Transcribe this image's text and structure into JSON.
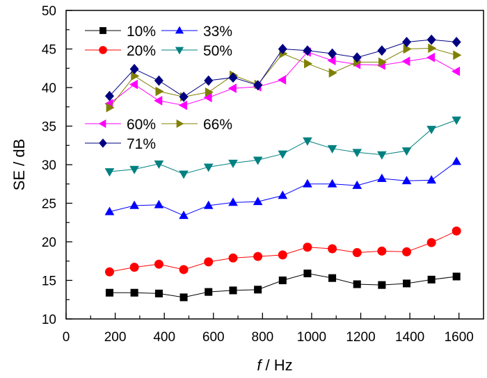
{
  "chart_data": {
    "type": "line",
    "title": "",
    "xlabel_italic": "f",
    "xlabel_rest": " / Hz",
    "xlabel": "f / Hz",
    "ylabel": "SE / dB",
    "xlim": [
      0,
      1700
    ],
    "ylim": [
      10,
      50
    ],
    "xticks": [
      0,
      200,
      400,
      600,
      800,
      1000,
      1200,
      1400,
      1600
    ],
    "xminor": [
      100,
      300,
      500,
      700,
      900,
      1100,
      1300,
      1500
    ],
    "yticks": [
      10,
      15,
      20,
      25,
      30,
      35,
      40,
      45,
      50
    ],
    "yminor": [
      12.5,
      17.5,
      22.5,
      27.5,
      32.5,
      37.5,
      42.5,
      47.5
    ],
    "grid": false,
    "legend_position": "top-left",
    "x": [
      177,
      278,
      378,
      479,
      580,
      680,
      781,
      882,
      983,
      1084,
      1185,
      1286,
      1387,
      1488,
      1590
    ],
    "series": [
      {
        "name": "10%",
        "color": "#000000",
        "marker": "square",
        "values": [
          13.4,
          13.4,
          13.3,
          12.8,
          13.5,
          13.7,
          13.8,
          15.0,
          15.9,
          15.3,
          14.5,
          14.4,
          14.6,
          15.1,
          15.5
        ]
      },
      {
        "name": "20%",
        "color": "#ff0000",
        "marker": "circle",
        "values": [
          16.1,
          16.7,
          17.1,
          16.4,
          17.4,
          17.9,
          18.1,
          18.3,
          19.3,
          19.1,
          18.6,
          18.8,
          18.7,
          19.9,
          21.4
        ]
      },
      {
        "name": "33%",
        "color": "#0000ff",
        "marker": "triangle-up",
        "values": [
          23.9,
          24.7,
          24.8,
          23.4,
          24.7,
          25.1,
          25.2,
          26.0,
          27.5,
          27.5,
          27.3,
          28.2,
          27.9,
          28.0,
          30.4
        ]
      },
      {
        "name": "50%",
        "color": "#008080",
        "marker": "triangle-down",
        "values": [
          29.1,
          29.4,
          30.1,
          28.8,
          29.7,
          30.2,
          30.6,
          31.4,
          33.1,
          32.1,
          31.6,
          31.3,
          31.8,
          34.6,
          35.8
        ]
      },
      {
        "name": "60%",
        "color": "#ff00ff",
        "marker": "triangle-left",
        "values": [
          37.9,
          40.4,
          38.3,
          37.7,
          38.7,
          39.9,
          40.1,
          41.0,
          44.6,
          43.5,
          43.0,
          42.9,
          43.4,
          43.9,
          42.1
        ]
      },
      {
        "name": "66%",
        "color": "#808000",
        "marker": "triangle-right",
        "values": [
          37.4,
          41.5,
          39.5,
          38.8,
          39.4,
          41.6,
          40.4,
          44.4,
          43.1,
          41.9,
          43.3,
          43.3,
          45.0,
          45.1,
          44.2
        ]
      },
      {
        "name": "71%",
        "color": "#000080",
        "marker": "diamond",
        "values": [
          38.9,
          42.4,
          40.9,
          38.8,
          40.9,
          41.3,
          40.3,
          45.0,
          44.8,
          44.4,
          43.9,
          44.8,
          45.9,
          46.2,
          45.9
        ]
      }
    ]
  }
}
